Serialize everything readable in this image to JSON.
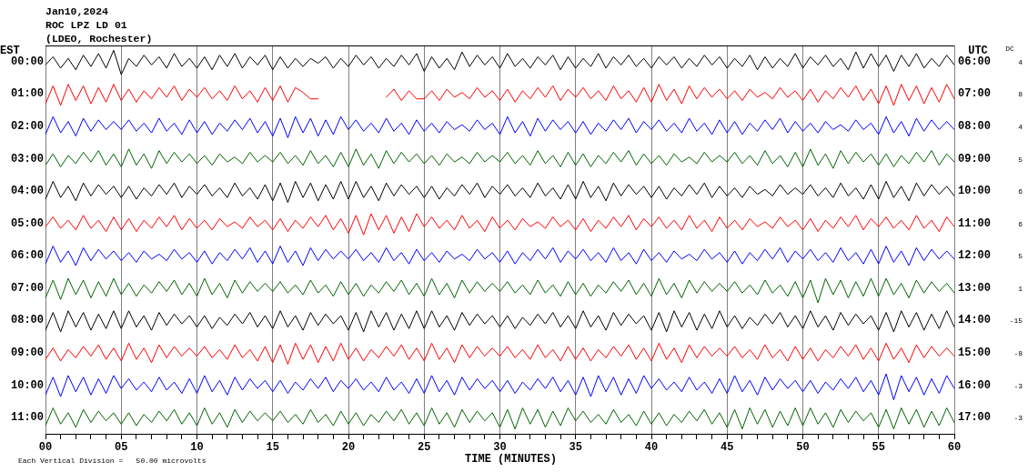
{
  "chart_data": {
    "type": "line",
    "title": "Jan10,2024",
    "subtitle": "ROC LPZ LD 01",
    "xlabel": "TIME (MINUTES)",
    "ylabel": "EST",
    "y2label": "UTC",
    "annotations": [
      "(LDEO, Rochester)",
      "Each Vertical Division =   50.00 microvolts",
      "DC",
      "4",
      "8",
      "4",
      "5",
      "6",
      "6",
      "5",
      "1",
      "-15",
      "-8",
      "-3",
      "-3"
    ],
    "grid": "x",
    "marker": "none",
    "xlim": [
      0,
      60
    ],
    "xticks": [
      {
        "value": 0,
        "label": "00"
      },
      {
        "value": 1,
        "label": null
      },
      {
        "value": 2,
        "label": null
      },
      {
        "value": 3,
        "label": null
      },
      {
        "value": 4,
        "label": null
      },
      {
        "value": 5,
        "label": "05"
      },
      {
        "value": 6,
        "label": null
      },
      {
        "value": 7,
        "label": null
      },
      {
        "value": 8,
        "label": null
      },
      {
        "value": 9,
        "label": null
      },
      10,
      {
        "value": 11,
        "label": null
      },
      {
        "value": 12,
        "label": null
      },
      {
        "value": 13,
        "label": null
      },
      {
        "value": 14,
        "label": null
      },
      15,
      {
        "value": 16,
        "label": null
      },
      {
        "value": 17,
        "label": null
      },
      {
        "value": 18,
        "label": null
      },
      {
        "value": 19,
        "label": null
      },
      20,
      {
        "value": 21,
        "label": null
      },
      {
        "value": 22,
        "label": null
      },
      {
        "value": 23,
        "label": null
      },
      {
        "value": 24,
        "label": null
      },
      25,
      {
        "value": 26,
        "label": null
      },
      {
        "value": 27,
        "label": null
      },
      {
        "value": 28,
        "label": null
      },
      {
        "value": 29,
        "label": null
      },
      30,
      {
        "value": 31,
        "label": null
      },
      {
        "value": 32,
        "label": null
      },
      {
        "value": 33,
        "label": null
      },
      {
        "value": 34,
        "label": null
      },
      35,
      {
        "value": 36,
        "label": null
      },
      {
        "value": 37,
        "label": null
      },
      {
        "value": 38,
        "label": null
      },
      {
        "value": 39,
        "label": null
      },
      40,
      {
        "value": 41,
        "label": null
      },
      {
        "value": 42,
        "label": null
      },
      {
        "value": 43,
        "label": null
      },
      {
        "value": 44,
        "label": null
      },
      45,
      {
        "value": 46,
        "label": null
      },
      {
        "value": 47,
        "label": null
      },
      {
        "value": 48,
        "label": null
      },
      {
        "value": 49,
        "label": null
      },
      50,
      {
        "value": 51,
        "label": null
      },
      {
        "value": 52,
        "label": null
      },
      {
        "value": 53,
        "label": null
      },
      {
        "value": 54,
        "label": null
      },
      55,
      {
        "value": 56,
        "label": null
      },
      {
        "value": 57,
        "label": null
      },
      {
        "value": 58,
        "label": null
      },
      {
        "value": 59,
        "label": null
      },
      60
    ],
    "ylim": [
      11.5,
      -0.5
    ],
    "yticks": [
      {
        "value": 0,
        "label": "00:00"
      },
      {
        "value": 1,
        "label": "01:00"
      },
      {
        "value": 2,
        "label": "02:00"
      },
      {
        "value": 3,
        "label": "03:00"
      },
      {
        "value": 4,
        "label": "04:00"
      },
      {
        "value": 5,
        "label": "05:00"
      },
      {
        "value": 6,
        "label": "06:00"
      },
      {
        "value": 7,
        "label": "07:00"
      },
      {
        "value": 8,
        "label": "08:00"
      },
      {
        "value": 9,
        "label": "09:00"
      },
      {
        "value": 10,
        "label": "10:00"
      },
      {
        "value": 11,
        "label": "11:00"
      }
    ],
    "y2lim": [
      17.5,
      5.5
    ],
    "y2ticks": [
      {
        "value": 6,
        "label": "06:00"
      },
      {
        "value": 7,
        "label": "07:00"
      },
      {
        "value": 8,
        "label": "08:00"
      },
      {
        "value": 9,
        "label": "09:00"
      },
      {
        "value": 10,
        "label": "10:00"
      },
      {
        "value": 11,
        "label": "11:00"
      },
      {
        "value": 12,
        "label": "12:00"
      },
      {
        "value": 13,
        "label": "13:00"
      },
      {
        "value": 14,
        "label": "14:00"
      },
      {
        "value": 15,
        "label": "15:00"
      },
      {
        "value": 16,
        "label": "16:00"
      },
      {
        "value": 17,
        "label": "17:00"
      }
    ],
    "x": [
      0,
      0.5,
      1,
      1.5,
      2,
      2.5,
      3,
      3.5,
      4,
      4.5,
      5,
      5.5,
      6,
      6.5,
      7,
      7.5,
      8,
      8.5,
      9,
      9.5,
      10,
      10.5,
      11,
      11.5,
      12,
      12.5,
      13,
      13.5,
      14,
      14.5,
      15,
      15.5,
      16,
      16.5,
      17,
      17.5,
      18,
      18.5,
      19,
      19.5,
      20,
      20.5,
      21,
      21.5,
      22,
      22.5,
      23,
      23.5,
      24,
      24.5,
      25,
      25.5,
      26,
      26.5,
      27,
      27.5,
      28,
      28.5,
      29,
      29.5,
      30,
      30.5,
      31,
      31.5,
      32,
      32.5,
      33,
      33.5,
      34,
      34.5,
      35,
      35.5,
      36,
      36.5,
      37,
      37.5,
      38,
      38.5,
      39,
      39.5,
      40,
      40.5,
      41,
      41.5,
      42,
      42.5,
      43,
      43.5,
      44,
      44.5,
      45,
      45.5,
      46,
      46.5,
      47,
      47.5,
      48,
      48.5,
      49,
      49.5,
      50,
      50.5,
      51,
      51.5,
      52,
      52.5,
      53,
      53.5,
      54,
      54.5,
      55,
      55.5,
      56,
      56.5,
      57,
      57.5,
      58,
      58.5,
      59,
      59.5,
      60
    ],
    "series": [
      {
        "color": "#000000",
        "values": [
          0.1,
          -0.15,
          0.2,
          -0.1,
          0.25,
          -0.2,
          0.15,
          -0.25,
          0.2,
          -0.35,
          0.4,
          -0.1,
          0.15,
          -0.2,
          0.1,
          -0.15,
          0.2,
          -0.25,
          0.15,
          -0.1,
          0.2,
          -0.15,
          0.25,
          -0.2,
          0.15,
          -0.25,
          0.2,
          -0.15,
          0.1,
          -0.2,
          0.25,
          -0.15,
          0.2,
          -0.1,
          0.15,
          -0.1,
          0.05,
          -0.15,
          0.2,
          -0.1,
          0.15,
          -0.2,
          0.1,
          -0.15,
          0.2,
          -0.1,
          0.15,
          -0.2,
          0.1,
          -0.25,
          0.3,
          -0.15,
          0.2,
          -0.1,
          0.25,
          -0.3,
          0.15,
          -0.2,
          0.1,
          -0.15,
          0.2,
          -0.25,
          0.15,
          -0.1,
          0.2,
          -0.15,
          0.1,
          -0.2,
          0.25,
          -0.15,
          0.2,
          -0.1,
          0.15,
          -0.25,
          0.2,
          -0.15,
          0.1,
          -0.2,
          0.15,
          -0.1,
          0.2,
          -0.15,
          0.1,
          -0.15,
          0.2,
          -0.1,
          0.15,
          -0.2,
          0.1,
          -0.15,
          0.2,
          -0.1,
          0.15,
          -0.2,
          0.25,
          -0.15,
          0.2,
          -0.1,
          0.15,
          -0.25,
          0.2,
          -0.15,
          0.1,
          -0.2,
          0.15,
          -0.1,
          0.25,
          -0.3,
          0.2,
          -0.25,
          0.15,
          -0.2,
          0.3,
          -0.2,
          0.15,
          -0.25,
          0.2,
          -0.1,
          0.15,
          -0.2,
          0.1
        ]
      },
      {
        "color": "#ff0000",
        "values": [
          1.3,
          0.75,
          1.35,
          0.7,
          1.2,
          0.75,
          1.3,
          0.8,
          1.25,
          0.7,
          1.2,
          0.85,
          1.25,
          0.9,
          1.15,
          0.8,
          1.1,
          0.75,
          1.2,
          0.85,
          1.1,
          0.8,
          1.15,
          0.9,
          1.2,
          0.75,
          1.15,
          0.9,
          1.25,
          0.8,
          1.2,
          0.75,
          1.25,
          0.8,
          0.95,
          1.15,
          1.15,
          null,
          null,
          null,
          null,
          null,
          null,
          null,
          null,
          1.1,
          0.85,
          1.2,
          0.9,
          1.15,
          1.15,
          0.9,
          1.2,
          0.85,
          1.1,
          0.95,
          1.15,
          0.8,
          1.1,
          0.9,
          1.2,
          0.85,
          1.25,
          0.9,
          1.15,
          0.8,
          1.1,
          0.75,
          1.2,
          0.85,
          1.1,
          0.8,
          1.15,
          0.9,
          1.2,
          0.75,
          1.15,
          0.9,
          1.25,
          0.8,
          1.25,
          0.7,
          1.2,
          0.85,
          1.3,
          0.75,
          1.15,
          0.8,
          1.1,
          0.85,
          1.15,
          0.9,
          1.2,
          0.85,
          1.1,
          0.95,
          1.15,
          0.8,
          1.1,
          0.9,
          1.2,
          0.85,
          1.25,
          0.9,
          1.15,
          0.8,
          1.1,
          0.75,
          1.2,
          0.85,
          1.3,
          0.75,
          1.35,
          0.7,
          1.2,
          0.75,
          1.3,
          0.8,
          1.25,
          0.7,
          1.15
        ]
      },
      {
        "color": "#0000ff",
        "values": [
          2.25,
          1.7,
          2.2,
          1.85,
          2.3,
          1.75,
          2.15,
          1.8,
          2.1,
          1.85,
          2.1,
          1.8,
          2.15,
          1.9,
          2.2,
          1.75,
          2.15,
          1.9,
          2.25,
          1.8,
          2.2,
          1.85,
          2.25,
          1.9,
          2.15,
          1.8,
          2.1,
          1.75,
          2.2,
          1.85,
          2.3,
          1.75,
          2.35,
          1.7,
          2.2,
          1.75,
          2.3,
          1.8,
          2.25,
          1.7,
          2.1,
          1.8,
          2.15,
          1.9,
          2.2,
          1.75,
          2.15,
          1.9,
          2.25,
          1.8,
          2.15,
          1.9,
          2.2,
          1.85,
          2.1,
          1.95,
          2.15,
          1.8,
          2.1,
          1.9,
          2.25,
          1.7,
          2.2,
          1.85,
          2.3,
          1.75,
          2.15,
          1.8,
          2.1,
          1.85,
          2.2,
          1.85,
          2.25,
          1.9,
          2.15,
          1.8,
          2.1,
          1.75,
          2.2,
          1.85,
          2.1,
          1.8,
          2.15,
          1.9,
          2.2,
          1.75,
          2.15,
          1.9,
          2.25,
          1.8,
          2.2,
          1.85,
          2.25,
          1.9,
          2.15,
          1.8,
          2.1,
          1.75,
          2.2,
          1.85,
          2.15,
          1.9,
          2.2,
          1.85,
          2.1,
          1.95,
          2.15,
          1.8,
          2.1,
          1.9,
          2.25,
          1.7,
          2.2,
          1.85,
          2.3,
          1.75,
          2.15,
          1.8,
          2.1,
          1.85,
          2.1
        ]
      },
      {
        "color": "#006400",
        "values": [
          3.2,
          2.85,
          3.25,
          2.9,
          3.15,
          2.8,
          3.1,
          2.75,
          3.2,
          2.85,
          3.25,
          2.7,
          3.2,
          2.85,
          3.3,
          2.75,
          3.15,
          2.8,
          3.1,
          2.85,
          3.15,
          2.9,
          3.2,
          2.85,
          3.1,
          2.95,
          3.15,
          2.8,
          3.1,
          2.9,
          3.1,
          2.8,
          3.15,
          2.9,
          3.2,
          2.75,
          3.15,
          2.9,
          3.25,
          2.8,
          3.25,
          2.7,
          3.2,
          2.85,
          3.3,
          2.75,
          3.15,
          2.8,
          3.1,
          2.85,
          3.15,
          2.9,
          3.2,
          2.85,
          3.1,
          2.95,
          3.15,
          2.8,
          3.1,
          2.9,
          3.1,
          2.8,
          3.15,
          2.9,
          3.2,
          2.75,
          3.15,
          2.9,
          3.25,
          2.8,
          3.2,
          2.85,
          3.25,
          2.9,
          3.15,
          2.8,
          3.1,
          2.75,
          3.2,
          2.85,
          3.15,
          2.9,
          3.2,
          2.85,
          3.1,
          2.95,
          3.15,
          2.8,
          3.1,
          2.9,
          3.1,
          2.8,
          3.15,
          2.9,
          3.2,
          2.75,
          3.15,
          2.9,
          3.25,
          2.8,
          3.25,
          2.7,
          3.2,
          2.85,
          3.3,
          2.75,
          3.15,
          2.8,
          3.1,
          2.85,
          3.2,
          2.85,
          3.25,
          2.9,
          3.15,
          2.8,
          3.1,
          2.75,
          3.2,
          2.85,
          3.1
        ]
      },
      {
        "color": "#000000",
        "values": [
          4.25,
          3.7,
          4.2,
          3.85,
          4.3,
          3.75,
          4.15,
          3.8,
          4.1,
          3.85,
          4.2,
          3.85,
          4.25,
          3.9,
          4.15,
          3.8,
          4.1,
          3.75,
          4.2,
          3.85,
          4.1,
          3.8,
          4.15,
          3.9,
          4.2,
          3.75,
          4.15,
          3.9,
          4.25,
          3.8,
          4.3,
          3.75,
          4.35,
          3.7,
          4.2,
          3.75,
          4.3,
          3.8,
          4.25,
          3.7,
          4.25,
          3.7,
          4.2,
          3.85,
          4.3,
          3.75,
          4.15,
          3.8,
          4.1,
          3.85,
          4.2,
          3.85,
          4.25,
          3.9,
          4.15,
          3.8,
          4.1,
          3.75,
          4.2,
          3.85,
          4.1,
          3.8,
          4.15,
          3.9,
          4.2,
          3.75,
          4.15,
          3.9,
          4.25,
          3.8,
          4.25,
          3.7,
          4.2,
          3.85,
          4.3,
          3.75,
          4.15,
          3.8,
          4.1,
          3.85,
          4.2,
          3.85,
          4.25,
          3.9,
          4.15,
          3.8,
          4.1,
          3.75,
          4.2,
          3.85,
          4.15,
          3.9,
          4.2,
          3.85,
          4.1,
          3.95,
          4.15,
          3.8,
          4.1,
          3.9,
          4.1,
          3.8,
          4.15,
          3.9,
          4.2,
          3.75,
          4.15,
          3.9,
          4.25,
          3.8,
          4.25,
          3.7,
          4.2,
          3.85,
          4.3,
          3.75,
          4.15,
          3.8,
          4.1,
          3.85,
          4.15
        ]
      },
      {
        "color": "#ff0000",
        "values": [
          5.1,
          4.8,
          5.15,
          4.9,
          5.2,
          4.75,
          5.15,
          4.9,
          5.25,
          4.8,
          5.2,
          4.85,
          5.25,
          4.9,
          5.15,
          4.8,
          5.1,
          4.75,
          5.2,
          4.85,
          5.15,
          4.9,
          5.2,
          4.85,
          5.1,
          4.95,
          5.15,
          4.8,
          5.1,
          4.9,
          5.2,
          4.85,
          5.25,
          4.9,
          5.15,
          4.8,
          5.1,
          4.75,
          5.2,
          4.85,
          5.3,
          4.75,
          5.35,
          4.7,
          5.2,
          4.75,
          5.3,
          4.8,
          5.25,
          4.7,
          5.1,
          4.8,
          5.15,
          4.9,
          5.2,
          4.75,
          5.15,
          4.9,
          5.25,
          4.8,
          5.15,
          4.9,
          5.2,
          4.85,
          5.1,
          4.95,
          5.15,
          4.8,
          5.1,
          4.9,
          5.2,
          4.85,
          5.25,
          4.9,
          5.15,
          4.8,
          5.1,
          4.75,
          5.2,
          4.85,
          5.1,
          4.8,
          5.15,
          4.9,
          5.2,
          4.75,
          5.15,
          4.9,
          5.25,
          4.8,
          5.15,
          4.9,
          5.2,
          4.85,
          5.1,
          4.95,
          5.15,
          4.8,
          5.1,
          4.9,
          5.2,
          4.85,
          5.25,
          4.9,
          5.15,
          4.8,
          5.1,
          4.75,
          5.2,
          4.85,
          5.1,
          4.8,
          5.15,
          4.9,
          5.2,
          4.75,
          5.15,
          4.9,
          5.25,
          4.8,
          5.1
        ]
      },
      {
        "color": "#0000ff",
        "values": [
          6.25,
          5.7,
          6.2,
          5.85,
          6.3,
          5.75,
          6.15,
          5.8,
          6.1,
          5.85,
          6.15,
          5.9,
          6.2,
          5.85,
          6.1,
          5.95,
          6.15,
          5.8,
          6.1,
          5.9,
          6.2,
          5.85,
          6.25,
          5.9,
          6.15,
          5.8,
          6.1,
          5.75,
          6.2,
          5.85,
          6.25,
          5.7,
          6.2,
          5.85,
          6.3,
          5.75,
          6.15,
          5.8,
          6.1,
          5.85,
          6.1,
          5.8,
          6.15,
          5.9,
          6.2,
          5.75,
          6.15,
          5.9,
          6.25,
          5.8,
          6.15,
          5.9,
          6.2,
          5.85,
          6.1,
          5.95,
          6.15,
          5.8,
          6.1,
          5.9,
          6.2,
          5.85,
          6.25,
          5.9,
          6.15,
          5.8,
          6.1,
          5.75,
          6.2,
          5.85,
          6.1,
          5.8,
          6.15,
          5.9,
          6.2,
          5.75,
          6.15,
          5.9,
          6.25,
          5.8,
          6.15,
          5.9,
          6.2,
          5.85,
          6.1,
          5.95,
          6.15,
          5.8,
          6.1,
          5.9,
          6.2,
          5.85,
          6.25,
          5.9,
          6.15,
          5.8,
          6.1,
          5.75,
          6.2,
          5.85,
          6.1,
          5.8,
          6.15,
          5.9,
          6.2,
          5.75,
          6.15,
          5.9,
          6.25,
          5.8,
          6.25,
          5.7,
          6.2,
          5.85,
          6.3,
          5.75,
          6.15,
          5.8,
          6.1,
          5.85,
          6.1
        ]
      },
      {
        "color": "#006400",
        "values": [
          7.3,
          6.75,
          7.35,
          6.7,
          7.2,
          6.75,
          7.3,
          6.8,
          7.25,
          6.7,
          7.2,
          6.85,
          7.25,
          6.9,
          7.15,
          6.8,
          7.1,
          6.75,
          7.2,
          6.85,
          7.25,
          6.7,
          7.2,
          6.85,
          7.3,
          6.75,
          7.15,
          6.8,
          7.1,
          6.85,
          7.1,
          6.8,
          7.15,
          6.9,
          7.2,
          6.75,
          7.15,
          6.9,
          7.25,
          6.8,
          7.2,
          6.85,
          7.25,
          6.9,
          7.15,
          6.8,
          7.1,
          6.75,
          7.2,
          6.85,
          7.25,
          6.7,
          7.2,
          6.85,
          7.3,
          6.75,
          7.15,
          6.8,
          7.1,
          6.85,
          7.1,
          6.8,
          7.15,
          6.9,
          7.2,
          6.75,
          7.15,
          6.9,
          7.25,
          6.8,
          7.2,
          6.85,
          7.25,
          6.9,
          7.15,
          6.8,
          7.1,
          6.75,
          7.2,
          6.85,
          7.25,
          6.7,
          7.2,
          6.85,
          7.3,
          6.75,
          7.15,
          6.8,
          7.1,
          6.85,
          7.1,
          6.8,
          7.15,
          6.9,
          7.2,
          6.75,
          7.15,
          6.9,
          7.25,
          6.8,
          7.3,
          6.75,
          7.45,
          6.7,
          7.2,
          6.75,
          7.3,
          6.8,
          7.25,
          6.7,
          7.25,
          6.7,
          7.2,
          6.85,
          7.3,
          6.75,
          7.15,
          6.8,
          7.1,
          6.85,
          7.15
        ]
      },
      {
        "color": "#000000",
        "values": [
          8.3,
          7.75,
          8.35,
          7.7,
          8.2,
          7.75,
          8.3,
          7.8,
          8.25,
          7.7,
          8.25,
          7.7,
          8.2,
          7.85,
          8.3,
          7.75,
          8.15,
          7.8,
          8.1,
          7.85,
          8.2,
          7.85,
          8.25,
          7.9,
          8.15,
          7.8,
          8.1,
          7.75,
          8.2,
          7.85,
          8.25,
          7.7,
          8.2,
          7.85,
          8.3,
          7.75,
          8.15,
          7.8,
          8.1,
          7.85,
          8.3,
          7.75,
          8.35,
          7.7,
          8.2,
          7.75,
          8.3,
          7.8,
          8.25,
          7.7,
          8.25,
          7.7,
          8.2,
          7.85,
          8.3,
          7.75,
          8.15,
          7.8,
          8.1,
          7.85,
          8.2,
          7.85,
          8.25,
          7.9,
          8.15,
          7.8,
          8.1,
          7.75,
          8.2,
          7.85,
          8.25,
          7.7,
          8.2,
          7.85,
          8.3,
          7.75,
          8.15,
          7.8,
          8.1,
          7.85,
          8.3,
          7.75,
          8.35,
          7.7,
          8.2,
          7.75,
          8.3,
          7.8,
          8.25,
          7.7,
          8.2,
          7.85,
          8.25,
          7.9,
          8.15,
          7.8,
          8.1,
          7.75,
          8.2,
          7.85,
          8.25,
          7.7,
          8.2,
          7.85,
          8.3,
          7.75,
          8.15,
          7.8,
          8.1,
          7.85,
          8.3,
          7.75,
          8.35,
          7.7,
          8.2,
          7.75,
          8.3,
          7.8,
          8.25,
          7.7,
          8.2
        ]
      },
      {
        "color": "#ff0000",
        "values": [
          9.2,
          8.85,
          9.25,
          8.9,
          9.15,
          8.8,
          9.1,
          8.75,
          9.2,
          8.85,
          9.25,
          8.7,
          9.2,
          8.85,
          9.3,
          8.75,
          9.15,
          8.8,
          9.1,
          8.85,
          9.1,
          8.8,
          9.15,
          8.9,
          9.2,
          8.75,
          9.15,
          8.9,
          9.25,
          8.8,
          9.3,
          8.75,
          9.35,
          8.7,
          9.2,
          8.75,
          9.3,
          8.8,
          9.25,
          8.7,
          9.2,
          8.85,
          9.25,
          8.9,
          9.15,
          8.8,
          9.1,
          8.75,
          9.2,
          8.85,
          9.25,
          8.7,
          9.2,
          8.85,
          9.3,
          8.75,
          9.15,
          8.8,
          9.1,
          8.85,
          9.1,
          8.8,
          9.15,
          8.9,
          9.2,
          8.75,
          9.15,
          8.9,
          9.25,
          8.8,
          9.2,
          8.85,
          9.25,
          8.9,
          9.15,
          8.8,
          9.1,
          8.75,
          9.2,
          8.85,
          9.25,
          8.7,
          9.2,
          8.85,
          9.3,
          8.75,
          9.15,
          8.8,
          9.1,
          8.85,
          9.1,
          8.8,
          9.15,
          8.9,
          9.2,
          8.75,
          9.15,
          8.9,
          9.25,
          8.8,
          9.2,
          8.85,
          9.25,
          8.9,
          9.15,
          8.8,
          9.1,
          8.75,
          9.2,
          8.85,
          9.25,
          8.7,
          9.2,
          8.85,
          9.3,
          8.75,
          9.15,
          8.8,
          9.1,
          8.85,
          9.1
        ]
      },
      {
        "color": "#0000ff",
        "values": [
          10.3,
          9.75,
          10.35,
          9.7,
          10.2,
          9.75,
          10.3,
          9.8,
          10.25,
          9.7,
          10.1,
          9.8,
          10.15,
          9.9,
          10.2,
          9.75,
          10.15,
          9.9,
          10.25,
          9.8,
          10.25,
          9.7,
          10.2,
          9.85,
          10.3,
          9.75,
          10.15,
          9.8,
          10.1,
          9.85,
          10.2,
          9.85,
          10.25,
          9.9,
          10.15,
          9.8,
          10.1,
          9.75,
          10.2,
          9.85,
          10.1,
          9.8,
          10.15,
          9.9,
          10.2,
          9.75,
          10.15,
          9.9,
          10.25,
          9.8,
          10.25,
          9.7,
          10.2,
          9.85,
          10.3,
          9.75,
          10.15,
          9.8,
          10.1,
          9.85,
          10.2,
          9.85,
          10.25,
          9.9,
          10.15,
          9.8,
          10.1,
          9.75,
          10.2,
          9.85,
          10.3,
          9.75,
          10.35,
          9.7,
          10.2,
          9.75,
          10.3,
          9.8,
          10.25,
          9.7,
          10.1,
          9.8,
          10.15,
          9.9,
          10.2,
          9.75,
          10.15,
          9.9,
          10.25,
          9.8,
          10.25,
          9.7,
          10.2,
          9.85,
          10.3,
          9.75,
          10.15,
          9.8,
          10.1,
          9.85,
          10.2,
          9.85,
          10.25,
          9.9,
          10.15,
          9.8,
          10.1,
          9.75,
          10.2,
          9.85,
          10.3,
          9.65,
          10.45,
          9.7,
          10.2,
          9.75,
          10.3,
          9.8,
          10.25,
          9.7,
          10.1
        ]
      },
      {
        "color": "#006400",
        "values": [
          11.25,
          10.7,
          11.2,
          10.85,
          11.3,
          10.75,
          11.15,
          10.8,
          11.1,
          10.85,
          11.2,
          10.85,
          11.25,
          10.9,
          11.15,
          10.8,
          11.1,
          10.75,
          11.2,
          10.85,
          11.25,
          10.7,
          11.2,
          10.85,
          11.3,
          10.75,
          11.15,
          10.8,
          11.1,
          10.85,
          11.1,
          10.8,
          11.15,
          10.9,
          11.2,
          10.75,
          11.15,
          10.9,
          11.25,
          10.8,
          11.2,
          10.85,
          11.25,
          10.9,
          11.15,
          10.8,
          11.1,
          10.75,
          11.2,
          10.85,
          11.25,
          10.7,
          11.2,
          10.85,
          11.3,
          10.75,
          11.15,
          10.8,
          11.1,
          10.85,
          11.3,
          10.75,
          11.35,
          10.7,
          11.2,
          10.75,
          11.3,
          10.8,
          11.25,
          10.7,
          11.1,
          10.8,
          11.15,
          10.9,
          11.2,
          10.75,
          11.15,
          10.9,
          11.25,
          10.8,
          11.2,
          10.85,
          11.25,
          10.9,
          11.15,
          10.8,
          11.1,
          10.75,
          11.2,
          10.85,
          11.3,
          10.75,
          11.35,
          10.7,
          11.2,
          10.75,
          11.3,
          10.8,
          11.25,
          10.7,
          11.25,
          10.7,
          11.2,
          10.85,
          11.3,
          10.75,
          11.15,
          10.8,
          11.1,
          10.85,
          11.3,
          10.75,
          11.35,
          10.7,
          11.2,
          10.75,
          11.3,
          10.8,
          11.25,
          10.7,
          11.15
        ]
      }
    ]
  }
}
